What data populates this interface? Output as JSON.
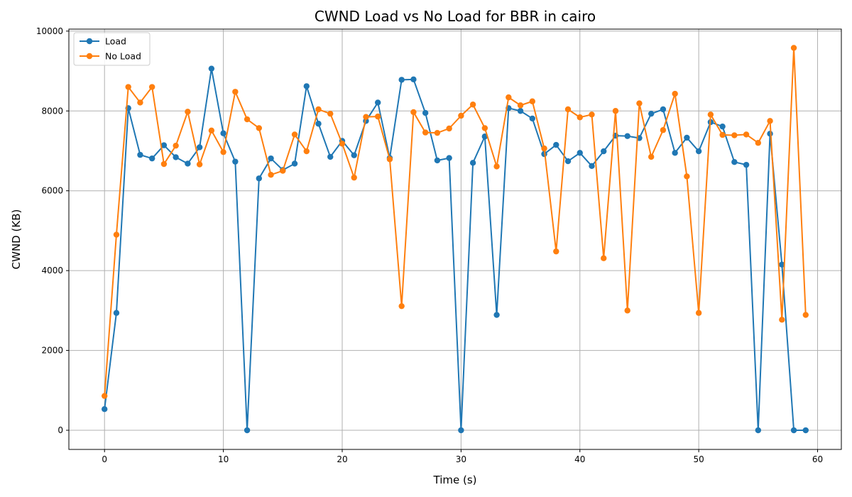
{
  "chart_data": {
    "type": "line",
    "title": "CWND Load vs No Load for BBR in cairo",
    "xlabel": "Time (s)",
    "ylabel": "CWND (KB)",
    "xlim": [
      -3,
      62
    ],
    "ylim": [
      -480,
      10050
    ],
    "xticks": [
      0,
      10,
      20,
      30,
      40,
      50,
      60
    ],
    "yticks": [
      0,
      2000,
      4000,
      6000,
      8000,
      10000
    ],
    "grid": true,
    "legend_position": "upper-left",
    "x": [
      0,
      1,
      2,
      3,
      4,
      5,
      6,
      7,
      8,
      9,
      10,
      11,
      12,
      13,
      14,
      15,
      16,
      17,
      18,
      19,
      20,
      21,
      22,
      23,
      24,
      25,
      26,
      27,
      28,
      29,
      30,
      31,
      32,
      33,
      34,
      35,
      36,
      37,
      38,
      39,
      40,
      41,
      42,
      43,
      44,
      45,
      46,
      47,
      48,
      49,
      50,
      51,
      52,
      53,
      54,
      55,
      56,
      57,
      58,
      59
    ],
    "series": [
      {
        "name": "Load",
        "color": "#1f77b4",
        "values": [
          530,
          2940,
          8070,
          6900,
          6810,
          7140,
          6840,
          6680,
          7090,
          9060,
          7440,
          6730,
          0,
          6310,
          6810,
          6520,
          6680,
          8620,
          7680,
          6850,
          7250,
          6890,
          7750,
          8210,
          6820,
          8780,
          8790,
          7950,
          6760,
          6820,
          0,
          6700,
          7360,
          2890,
          8070,
          8000,
          7810,
          6920,
          7150,
          6740,
          6950,
          6620,
          6990,
          7380,
          7370,
          7320,
          7930,
          8040,
          6950,
          7330,
          6990,
          7720,
          7610,
          6720,
          6650,
          0,
          7430,
          4150,
          0,
          0
        ]
      },
      {
        "name": "No Load",
        "color": "#ff7f0e",
        "values": [
          860,
          4900,
          8600,
          8210,
          8600,
          6670,
          7130,
          7980,
          6660,
          7510,
          6970,
          8480,
          7790,
          7570,
          6400,
          6500,
          7410,
          6990,
          8040,
          7930,
          7180,
          6330,
          7850,
          7860,
          6790,
          3110,
          7970,
          7460,
          7450,
          7560,
          7880,
          8160,
          7570,
          6610,
          8340,
          8140,
          8240,
          7060,
          4480,
          8040,
          7840,
          7910,
          4310,
          8000,
          3000,
          8190,
          6850,
          7520,
          8430,
          6360,
          2940,
          7910,
          7400,
          7390,
          7410,
          7200,
          7750,
          2770,
          9580,
          2890
        ]
      }
    ]
  }
}
